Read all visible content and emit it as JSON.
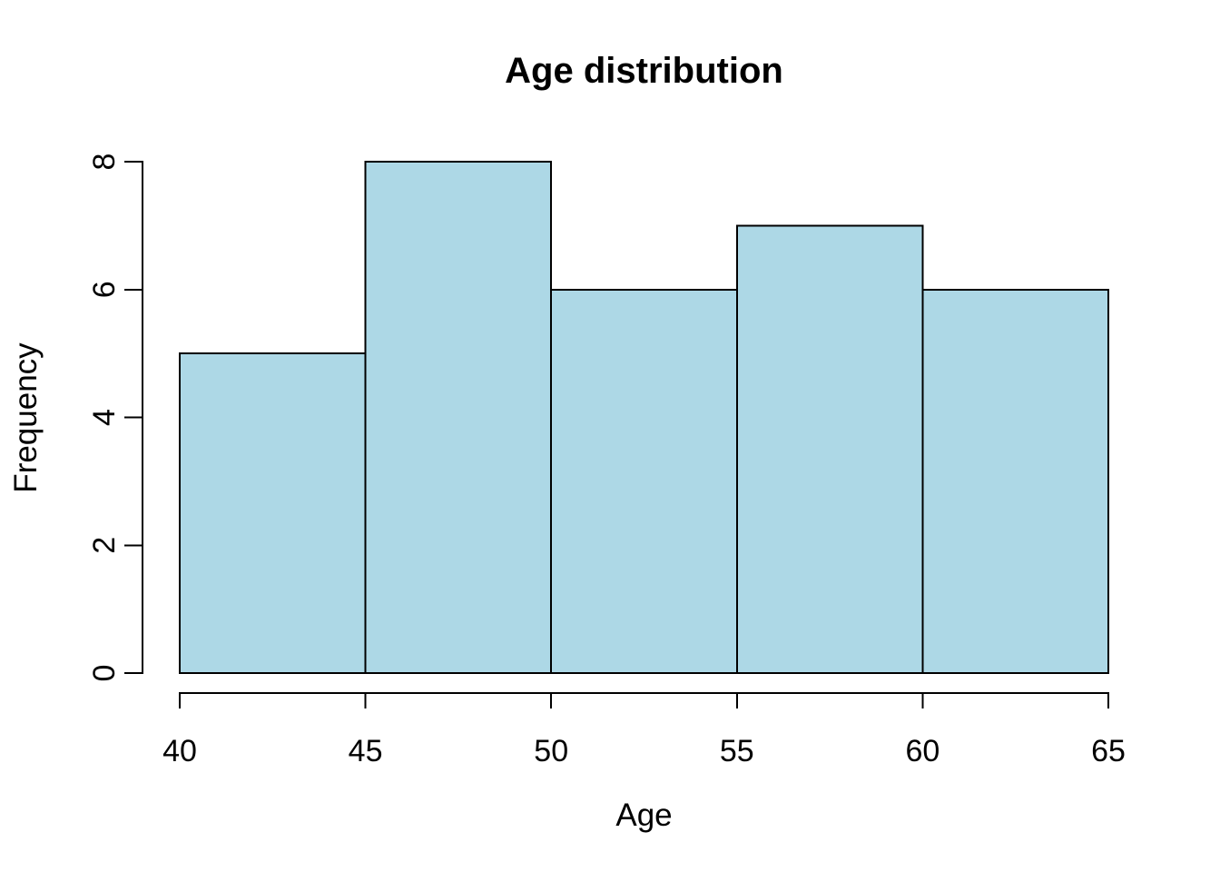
{
  "chart_data": {
    "type": "bar",
    "subtype": "histogram",
    "title": "Age distribution",
    "xlabel": "Age",
    "ylabel": "Frequency",
    "bin_edges": [
      40,
      45,
      50,
      55,
      60,
      65
    ],
    "values": [
      5,
      8,
      6,
      7,
      6
    ],
    "xlim": [
      40,
      65
    ],
    "ylim": [
      0,
      8
    ],
    "x_ticks": [
      40,
      45,
      50,
      55,
      60,
      65
    ],
    "y_ticks": [
      0,
      2,
      4,
      6,
      8
    ],
    "grid": false,
    "legend_position": "none",
    "colors": {
      "bar_fill": "#ADD8E6",
      "bar_stroke": "#000000",
      "axis": "#000000",
      "text": "#000000",
      "background": "#FFFFFF"
    }
  }
}
